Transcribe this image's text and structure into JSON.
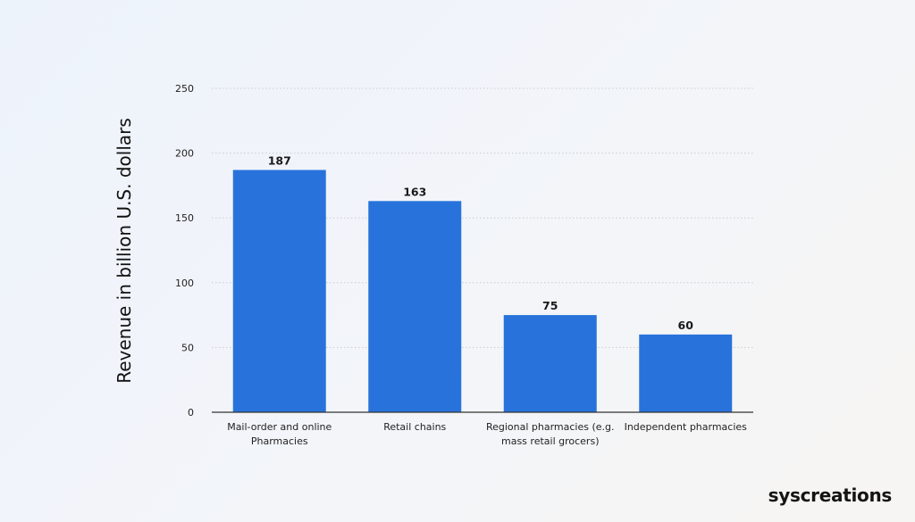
{
  "chart_data": {
    "type": "bar",
    "title": "",
    "xlabel": "",
    "ylabel": "Revenue in billion U.S. dollars",
    "categories": [
      [
        "Mail-order and online",
        "Pharmacies"
      ],
      [
        "Retail chains"
      ],
      [
        "Regional pharmacies (e.g.",
        "mass retail grocers)"
      ],
      [
        "Independent pharmacies"
      ]
    ],
    "values": [
      187,
      163,
      75,
      60
    ],
    "data_labels": [
      "187",
      "163",
      "75",
      "60"
    ],
    "ylim": [
      0,
      250
    ],
    "yticks": [
      0,
      50,
      100,
      150,
      200,
      250
    ],
    "ytick_labels": [
      "0",
      "50",
      "100",
      "150",
      "200",
      "250"
    ],
    "grid": true,
    "legend": "none",
    "bar_color": "#2873db",
    "grid_color": "#c8ccd3",
    "axis_color": "#333333"
  },
  "brand": {
    "logo_text": "syscreations"
  }
}
